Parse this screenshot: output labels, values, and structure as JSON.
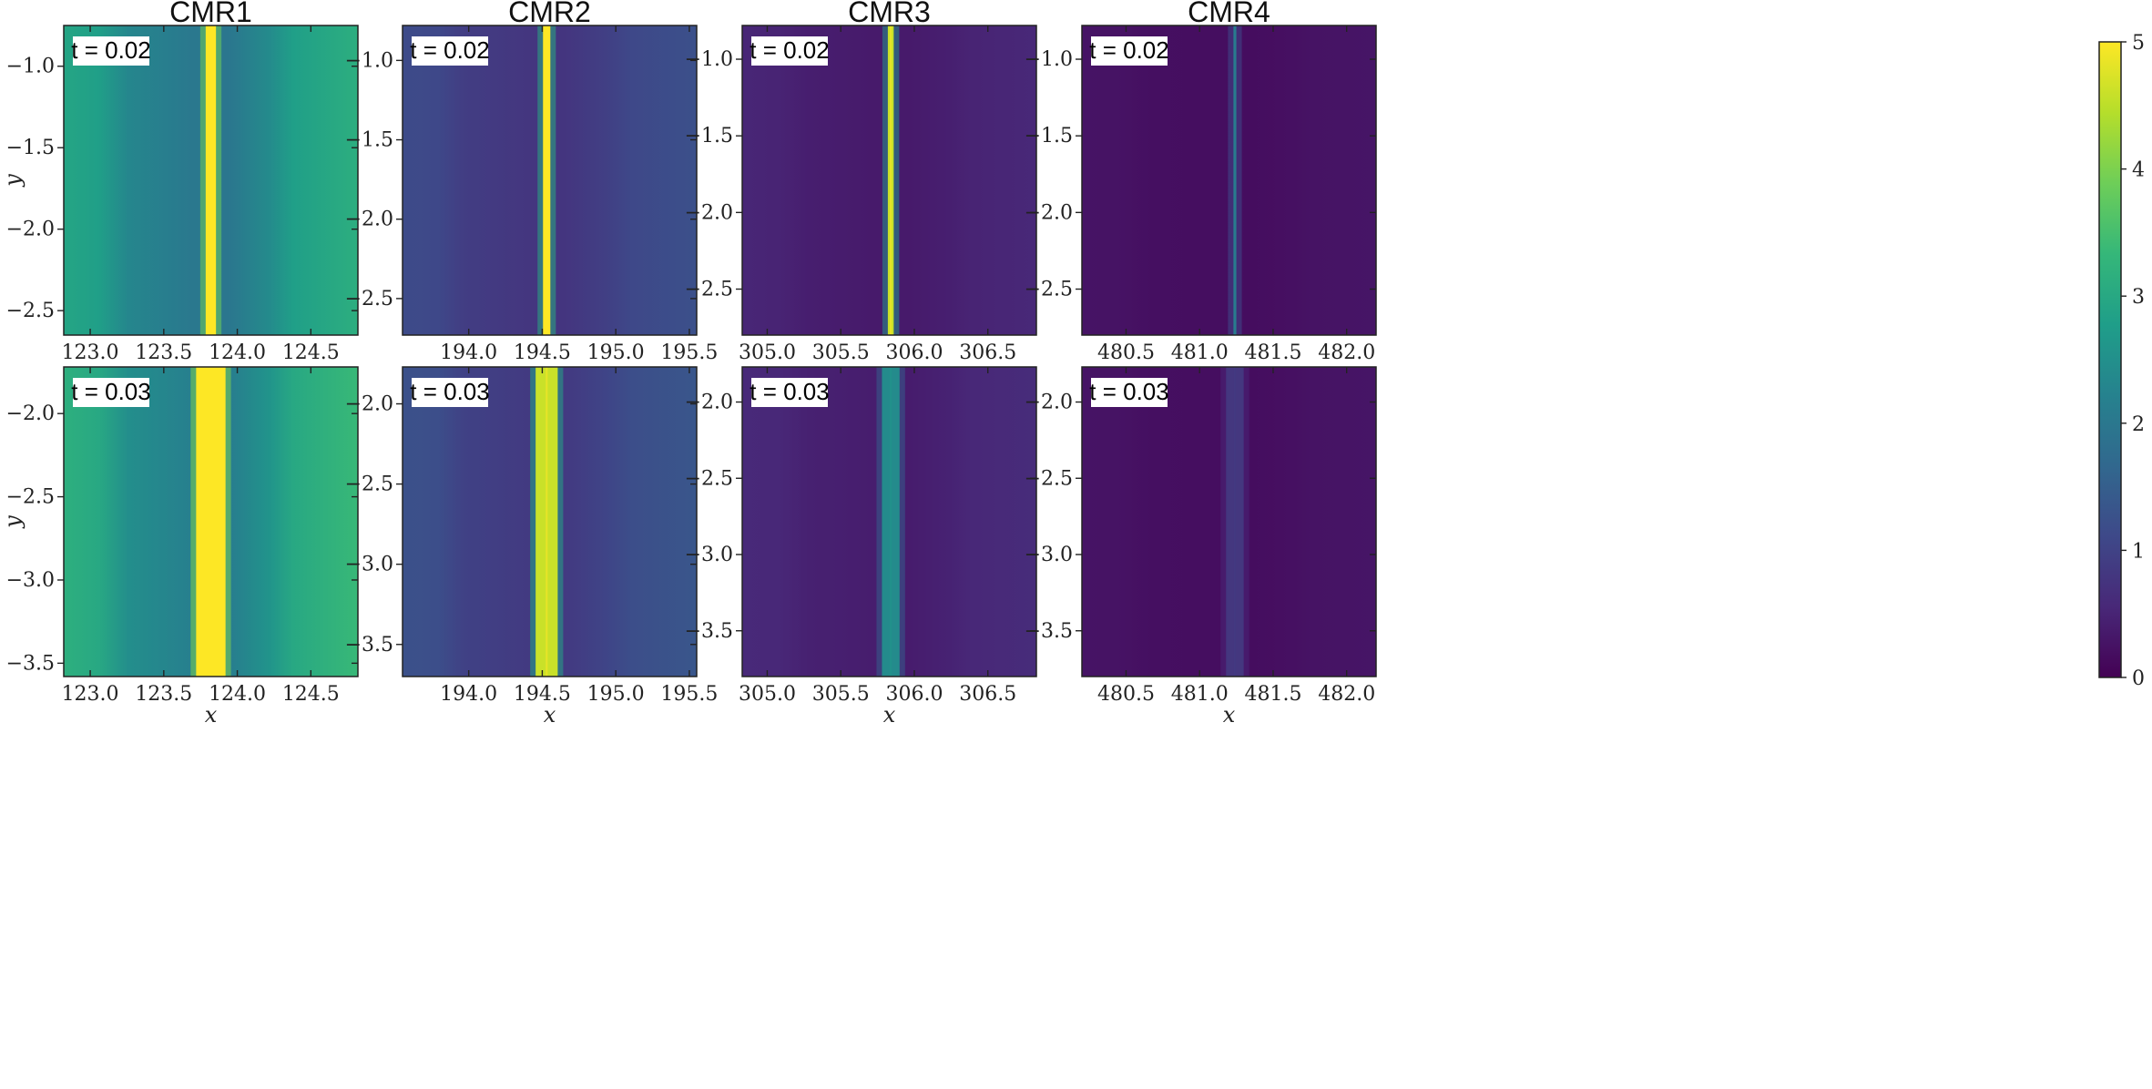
{
  "chart_data": {
    "type": "heatmap",
    "colormap": "viridis",
    "colorbar": {
      "min": 0,
      "max": 5,
      "ticks": [
        0,
        1,
        2,
        3,
        4,
        5
      ]
    },
    "columns": [
      {
        "title": "CMR1",
        "xlim": [
          122.82,
          124.82
        ],
        "x_ticks": [
          123.0,
          123.5,
          124.0,
          124.5
        ],
        "x_tick_labels": [
          "123.0",
          "123.5",
          "124.0",
          "124.5"
        ],
        "front_x": 123.82
      },
      {
        "title": "CMR2",
        "xlim": [
          193.55,
          195.55
        ],
        "x_ticks": [
          194.0,
          194.5,
          195.0,
          195.5
        ],
        "x_tick_labels": [
          "194.0",
          "194.5",
          "195.0",
          "195.5"
        ],
        "front_x": 194.53
      },
      {
        "title": "CMR3",
        "xlim": [
          304.83,
          306.83
        ],
        "x_ticks": [
          305.0,
          305.5,
          306.0,
          306.5
        ],
        "x_tick_labels": [
          "305.0",
          "305.5",
          "306.0",
          "306.5"
        ],
        "front_x": 305.84
      },
      {
        "title": "CMR4",
        "xlim": [
          480.2,
          482.2
        ],
        "x_ticks": [
          480.5,
          481.0,
          481.5,
          482.0
        ],
        "x_tick_labels": [
          "480.5",
          "481.0",
          "481.5",
          "482.0"
        ],
        "front_x": 481.24
      }
    ],
    "rows": [
      {
        "time_label": "t = 0.02",
        "panels": [
          {
            "ylim": [
              -2.65,
              -0.75
            ],
            "y_ticks": [
              -1.0,
              -1.5,
              -2.0,
              -2.5
            ],
            "y_tick_labels": [
              "−1.0",
              "−1.5",
              "−2.0",
              "−2.5"
            ],
            "front_width": 0.07,
            "background_level": 2.8,
            "front_level": 5.0
          },
          {
            "ylim": [
              -2.73,
              -0.78
            ],
            "y_ticks": [
              -1.0,
              -1.5,
              -2.0,
              -2.5
            ],
            "y_tick_labels": [
              "−1.0",
              "−1.5",
              "−2.0",
              "−2.5"
            ],
            "front_width": 0.05,
            "background_level": 1.1,
            "front_level": 5.0
          },
          {
            "ylim": [
              -2.8,
              -0.78
            ],
            "y_ticks": [
              -1.0,
              -1.5,
              -2.0,
              -2.5
            ],
            "y_tick_labels": [
              "−1.0",
              "−1.5",
              "−2.0",
              "−2.5"
            ],
            "front_width": 0.04,
            "background_level": 0.5,
            "front_level": 4.6
          },
          {
            "ylim": [
              -2.8,
              -0.78
            ],
            "y_ticks": [
              -1.0,
              -1.5,
              -2.0,
              -2.5
            ],
            "y_tick_labels": [
              "−1.0",
              "−1.5",
              "−2.0",
              "−2.5"
            ],
            "front_width": 0.02,
            "background_level": 0.25,
            "front_level": 2.0
          }
        ]
      },
      {
        "time_label": "t = 0.03",
        "panels": [
          {
            "ylim": [
              -3.58,
              -1.72
            ],
            "y_ticks": [
              -2.0,
              -2.5,
              -3.0,
              -3.5
            ],
            "y_tick_labels": [
              "−2.0",
              "−2.5",
              "−3.0",
              "−3.5"
            ],
            "front_width": 0.2,
            "background_level": 3.0,
            "front_level": 5.0
          },
          {
            "ylim": [
              -3.7,
              -1.77
            ],
            "y_ticks": [
              -2.0,
              -2.5,
              -3.0,
              -3.5
            ],
            "y_tick_labels": [
              "−2.0",
              "−2.5",
              "−3.0",
              "−3.5"
            ],
            "front_width": 0.15,
            "background_level": 1.2,
            "front_level": 4.6
          },
          {
            "ylim": [
              -3.8,
              -1.77
            ],
            "y_ticks": [
              -2.0,
              -2.5,
              -3.0,
              -3.5
            ],
            "y_tick_labels": [
              "−2.0",
              "−2.5",
              "−3.0",
              "−3.5"
            ],
            "front_width": 0.12,
            "background_level": 0.55,
            "front_level": 2.4
          },
          {
            "ylim": [
              -3.8,
              -1.77
            ],
            "y_ticks": [
              -2.0,
              -2.5,
              -3.0,
              -3.5
            ],
            "y_tick_labels": [
              "−2.0",
              "−2.5",
              "−3.0",
              "−3.5"
            ],
            "front_width": 0.12,
            "background_level": 0.25,
            "front_level": 0.8
          }
        ]
      }
    ],
    "xlabel": "x",
    "ylabel": "y"
  },
  "colors": {
    "viridis": [
      "#440154",
      "#482878",
      "#3e4989",
      "#31688e",
      "#26828e",
      "#1f9e89",
      "#35b779",
      "#6ece58",
      "#b5de2b",
      "#fde725"
    ],
    "frame": "#222222"
  }
}
